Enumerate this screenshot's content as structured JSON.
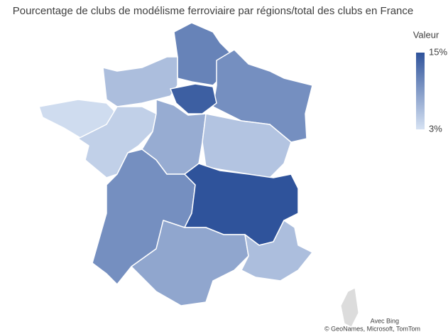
{
  "title": "Pourcentage de clubs de modélisme ferroviaire par régions/total des clubs en France",
  "legend": {
    "title": "Valeur",
    "low_color": "#d6e2f3",
    "high_color": "#2f539b",
    "ticks": [
      {
        "value": 15,
        "label": "15%"
      },
      {
        "value": 3,
        "label": "3%"
      }
    ]
  },
  "regions": {
    "values": [
      11,
      6,
      3.5,
      14,
      10,
      4.5,
      7.5,
      5.5,
      10,
      15,
      8,
      6
    ]
  },
  "attribution": [
    "Avec Bing",
    "© GeoNames, Microsoft, TomTom"
  ]
}
